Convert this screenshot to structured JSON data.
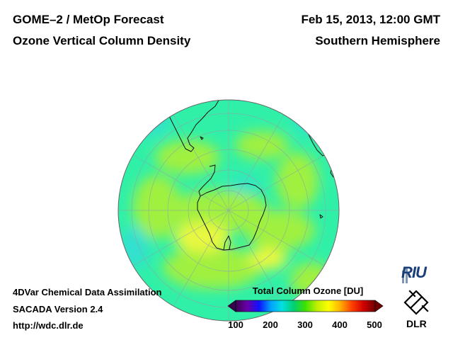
{
  "header": {
    "product": "GOME–2 / MetOp Forecast",
    "quantity": "Ozone Vertical Column Density",
    "datetime": "Feb 15, 2013, 12:00 GMT",
    "region": "Southern Hemisphere"
  },
  "footer": {
    "method": "4DVar Chemical Data Assimilation",
    "version": "SACADA Version 2.4",
    "url": "http://wdc.dlr.de"
  },
  "colorbar": {
    "title": "Total Column Ozone [DU]",
    "min": 100,
    "max": 500,
    "ticks": [
      "100",
      "200",
      "300",
      "400",
      "500"
    ],
    "stops": [
      "#3a0050",
      "#6a00a8",
      "#1010ff",
      "#00a0ff",
      "#00e0e0",
      "#00d070",
      "#40e000",
      "#c0f000",
      "#ffff00",
      "#ffb000",
      "#ff4000",
      "#d00000",
      "#700000"
    ]
  },
  "map": {
    "projection": "orthographic, south polar view",
    "background_color": "#30f0a8",
    "ozone_patch_color": "#a0f040",
    "high_patch_color": "#e8f840",
    "low_patch_color": "#30e0d0"
  },
  "logos": {
    "riu": "RIU",
    "dlr": "DLR"
  }
}
